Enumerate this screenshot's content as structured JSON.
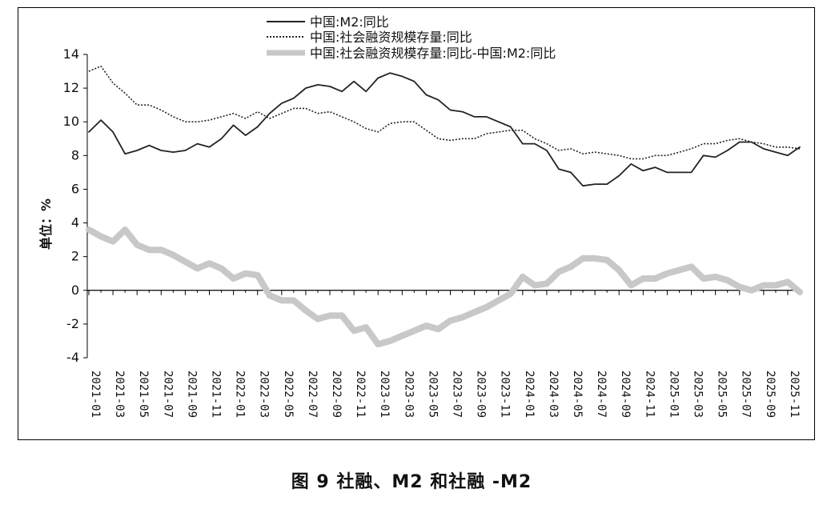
{
  "caption": "图 9   社融、M2 和社融 -M2",
  "chart_data": {
    "type": "line",
    "title": "",
    "xlabel": "",
    "ylabel": "单位：%",
    "ylim": [
      -4,
      14
    ],
    "yticks": [
      -4,
      -2,
      0,
      2,
      4,
      6,
      8,
      10,
      12,
      14
    ],
    "grid": false,
    "legend_position": "top-center",
    "x": [
      "2021-01",
      "2021-02",
      "2021-03",
      "2021-04",
      "2021-05",
      "2021-06",
      "2021-07",
      "2021-08",
      "2021-09",
      "2021-10",
      "2021-11",
      "2021-12",
      "2022-01",
      "2022-02",
      "2022-03",
      "2022-04",
      "2022-05",
      "2022-06",
      "2022-07",
      "2022-08",
      "2022-09",
      "2022-10",
      "2022-11",
      "2022-12",
      "2023-01",
      "2023-02",
      "2023-03",
      "2023-04",
      "2023-05",
      "2023-06",
      "2023-07",
      "2023-08",
      "2023-09",
      "2023-10",
      "2023-11",
      "2023-12",
      "2024-01",
      "2024-02",
      "2024-03",
      "2024-04",
      "2024-05",
      "2024-06",
      "2024-07",
      "2024-08",
      "2024-09",
      "2024-10",
      "2024-11",
      "2024-12",
      "2025-01",
      "2025-02",
      "2025-03",
      "2025-04",
      "2025-05",
      "2025-06",
      "2025-07",
      "2025-08",
      "2025-09",
      "2025-10",
      "2025-11",
      "2025-12"
    ],
    "xtick_labels": [
      "2021-01",
      "2021-03",
      "2021-05",
      "2021-07",
      "2021-09",
      "2021-11",
      "2022-01",
      "2022-03",
      "2022-05",
      "2022-07",
      "2022-09",
      "2022-11",
      "2023-01",
      "2023-03",
      "2023-05",
      "2023-07",
      "2023-09",
      "2023-11",
      "2024-01",
      "2024-03",
      "2024-05",
      "2024-07",
      "2024-09",
      "2024-11",
      "2025-01",
      "2025-03",
      "2025-05",
      "2025-07",
      "2025-09",
      "2025-11"
    ],
    "series": [
      {
        "name": "中国:M2:同比",
        "style": "solid",
        "color": "#222222",
        "values": [
          9.4,
          10.1,
          9.4,
          8.1,
          8.3,
          8.6,
          8.3,
          8.2,
          8.3,
          8.7,
          8.5,
          9.0,
          9.8,
          9.2,
          9.7,
          10.5,
          11.1,
          11.4,
          12.0,
          12.2,
          12.1,
          11.8,
          12.4,
          11.8,
          12.6,
          12.9,
          12.7,
          12.4,
          11.6,
          11.3,
          10.7,
          10.6,
          10.3,
          10.3,
          10.0,
          9.7,
          8.7,
          8.7,
          8.3,
          7.2,
          7.0,
          6.2,
          6.3,
          6.3,
          6.8,
          7.5,
          7.1,
          7.3,
          7.0,
          7.0,
          7.0,
          8.0,
          7.9,
          8.3,
          8.8,
          8.8,
          8.4,
          8.2,
          8.0,
          8.5
        ]
      },
      {
        "name": "中国:社会融资规模存量:同比",
        "style": "dotted",
        "color": "#222222",
        "values": [
          13.0,
          13.3,
          12.3,
          11.7,
          11.0,
          11.0,
          10.7,
          10.3,
          10.0,
          10.0,
          10.1,
          10.3,
          10.5,
          10.2,
          10.6,
          10.2,
          10.5,
          10.8,
          10.8,
          10.5,
          10.6,
          10.3,
          10.0,
          9.6,
          9.4,
          9.9,
          10.0,
          10.0,
          9.5,
          9.0,
          8.9,
          9.0,
          9.0,
          9.3,
          9.4,
          9.5,
          9.5,
          9.0,
          8.7,
          8.3,
          8.4,
          8.1,
          8.2,
          8.1,
          8.0,
          7.8,
          7.8,
          8.0,
          8.0,
          8.2,
          8.4,
          8.7,
          8.7,
          8.9,
          9.0,
          8.8,
          8.7,
          8.5,
          8.5,
          8.4
        ]
      },
      {
        "name": "中国:社会融资规模存量:同比-中国:M2:同比",
        "style": "thick",
        "color": "#c8c8c8",
        "values": [
          3.6,
          3.2,
          2.9,
          3.6,
          2.7,
          2.4,
          2.4,
          2.1,
          1.7,
          1.3,
          1.6,
          1.3,
          0.7,
          1.0,
          0.9,
          -0.3,
          -0.6,
          -0.6,
          -1.2,
          -1.7,
          -1.5,
          -1.5,
          -2.4,
          -2.2,
          -3.2,
          -3.0,
          -2.7,
          -2.4,
          -2.1,
          -2.3,
          -1.8,
          -1.6,
          -1.3,
          -1.0,
          -0.6,
          -0.2,
          0.8,
          0.3,
          0.4,
          1.1,
          1.4,
          1.9,
          1.9,
          1.8,
          1.2,
          0.3,
          0.7,
          0.7,
          1.0,
          1.2,
          1.4,
          0.7,
          0.8,
          0.6,
          0.2,
          0.0,
          0.3,
          0.3,
          0.5,
          -0.1
        ]
      }
    ]
  }
}
